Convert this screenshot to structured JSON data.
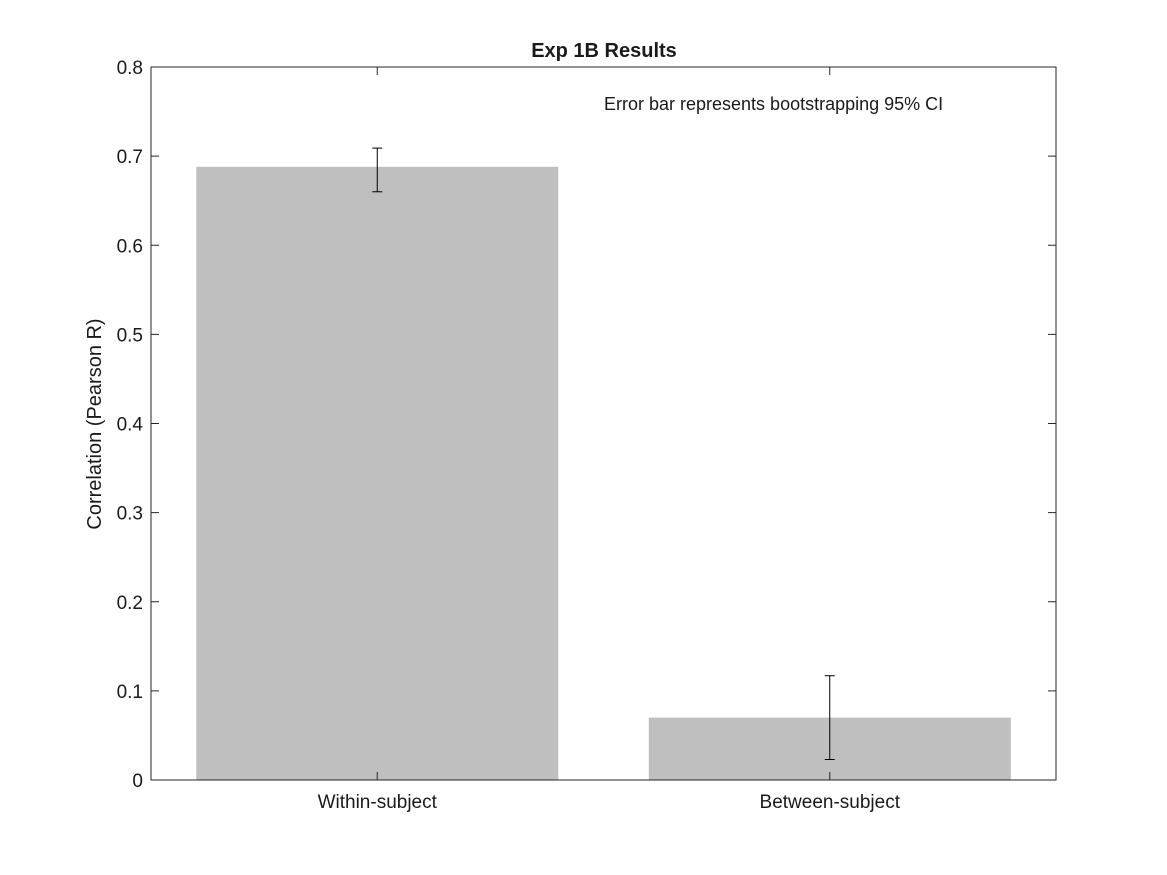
{
  "chart_data": {
    "type": "bar",
    "title": "Exp 1B Results",
    "xlabel": "",
    "ylabel": "Correlation (Pearson R)",
    "categories": [
      "Within-subject",
      "Between-subject"
    ],
    "values": [
      0.688,
      0.07
    ],
    "error_bars": [
      {
        "low": 0.66,
        "high": 0.709
      },
      {
        "low": 0.023,
        "high": 0.117
      }
    ],
    "ylim": [
      0,
      0.8
    ],
    "yticks": [
      0,
      0.1,
      0.2,
      0.3,
      0.4,
      0.5,
      0.6,
      0.7,
      0.8
    ],
    "ytick_labels": [
      "0",
      "0.1",
      "0.2",
      "0.3",
      "0.4",
      "0.5",
      "0.6",
      "0.7",
      "0.8"
    ],
    "annotation": "Error bar represents bootstrapping 95% CI",
    "grid": false,
    "legend": "none",
    "colors": {
      "bar": "#bfbfbf",
      "axis": "#262626",
      "error_bar": "#000000"
    }
  }
}
